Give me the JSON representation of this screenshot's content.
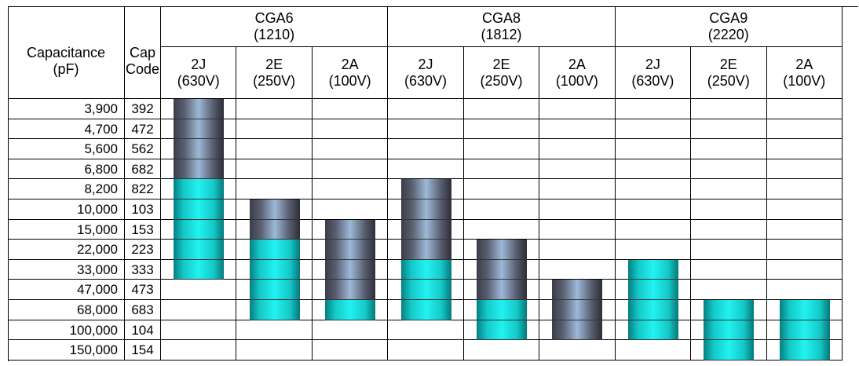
{
  "headers": {
    "capacitance": "Capacitance\n(pF)",
    "cap_code": "Cap\nCode"
  },
  "series": [
    {
      "name": "CGA6",
      "size": "(1210)"
    },
    {
      "name": "CGA8",
      "size": "(1812)"
    },
    {
      "name": "CGA9",
      "size": "(2220)"
    }
  ],
  "voltages": [
    {
      "code": "2J",
      "rating": "(630V)"
    },
    {
      "code": "2E",
      "rating": "(250V)"
    },
    {
      "code": "2A",
      "rating": "(100V)"
    }
  ],
  "rows": [
    {
      "capacitance": "3,900",
      "code": "392"
    },
    {
      "capacitance": "4,700",
      "code": "472"
    },
    {
      "capacitance": "5,600",
      "code": "562"
    },
    {
      "capacitance": "6,800",
      "code": "682"
    },
    {
      "capacitance": "8,200",
      "code": "822"
    },
    {
      "capacitance": "10,000",
      "code": "103"
    },
    {
      "capacitance": "15,000",
      "code": "153"
    },
    {
      "capacitance": "22,000",
      "code": "223"
    },
    {
      "capacitance": "33,000",
      "code": "333"
    },
    {
      "capacitance": "47,000",
      "code": "473"
    },
    {
      "capacitance": "68,000",
      "code": "683"
    },
    {
      "capacitance": "100,000",
      "code": "104"
    },
    {
      "capacitance": "150,000",
      "code": "154"
    }
  ],
  "availability": [
    {
      "series": "CGA6",
      "voltage": "2J",
      "segments": [
        {
          "from": 0,
          "to": 3,
          "color": "gray"
        },
        {
          "from": 4,
          "to": 8,
          "color": "cyan"
        }
      ]
    },
    {
      "series": "CGA6",
      "voltage": "2E",
      "segments": [
        {
          "from": 5,
          "to": 6,
          "color": "gray"
        },
        {
          "from": 7,
          "to": 10,
          "color": "cyan"
        }
      ]
    },
    {
      "series": "CGA6",
      "voltage": "2A",
      "segments": [
        {
          "from": 6,
          "to": 9,
          "color": "gray"
        },
        {
          "from": 10,
          "to": 10,
          "color": "cyan"
        }
      ]
    },
    {
      "series": "CGA8",
      "voltage": "2J",
      "segments": [
        {
          "from": 4,
          "to": 7,
          "color": "gray"
        },
        {
          "from": 8,
          "to": 10,
          "color": "cyan"
        }
      ]
    },
    {
      "series": "CGA8",
      "voltage": "2E",
      "segments": [
        {
          "from": 7,
          "to": 9,
          "color": "gray"
        },
        {
          "from": 10,
          "to": 11,
          "color": "cyan"
        }
      ]
    },
    {
      "series": "CGA8",
      "voltage": "2A",
      "segments": [
        {
          "from": 9,
          "to": 11,
          "color": "gray"
        }
      ]
    },
    {
      "series": "CGA9",
      "voltage": "2J",
      "segments": [
        {
          "from": 8,
          "to": 11,
          "color": "cyan"
        }
      ]
    },
    {
      "series": "CGA9",
      "voltage": "2E",
      "segments": [
        {
          "from": 10,
          "to": 12,
          "color": "cyan"
        }
      ]
    },
    {
      "series": "CGA9",
      "voltage": "2A",
      "segments": [
        {
          "from": 10,
          "to": 12,
          "color": "cyan"
        }
      ]
    }
  ],
  "colors": {
    "gray": "#5a6072",
    "cyan": "#22f2f0"
  }
}
